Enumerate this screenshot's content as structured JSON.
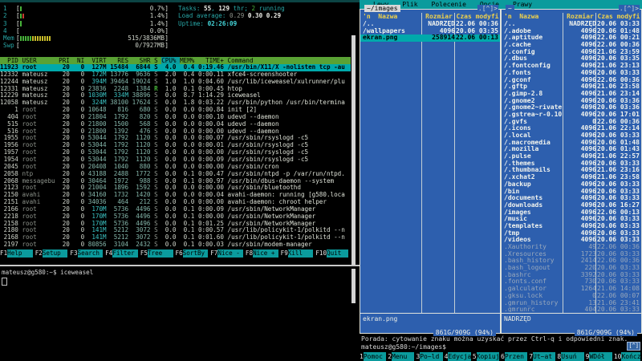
{
  "colors": {
    "mc_blue": "#2d5fae",
    "teal": "#0b9b9d",
    "selection_cyan": "#00a9ab",
    "htop_header_green": "#5aa234",
    "panel_yellow": "#f0d24b"
  },
  "htop": {
    "meters": [
      {
        "label": "1",
        "ticks": [
          "g"
        ],
        "value": "0.7%"
      },
      {
        "label": "2",
        "ticks": [
          "g",
          "r"
        ],
        "value": "1.4%"
      },
      {
        "label": "3",
        "ticks": [
          "g"
        ],
        "value": "1.4%"
      },
      {
        "label": "4",
        "ticks": [],
        "value": "0.0%"
      },
      {
        "label": "Mem",
        "ticks": [
          "g",
          "g",
          "g",
          "g",
          "g",
          "y",
          "y",
          "y",
          "y",
          "y",
          "y",
          "y",
          "y"
        ],
        "value": "515/3836MB"
      },
      {
        "label": "Swp",
        "ticks": [],
        "value": "0/7927MB"
      }
    ],
    "summary": [
      [
        {
          "t": "Tasks: ",
          "c": "lbl"
        },
        {
          "t": "55",
          "c": "wb"
        },
        {
          "t": ", ",
          "c": "lbl"
        },
        {
          "t": "129",
          "c": "wb"
        },
        {
          "t": " thr; ",
          "c": "lbl"
        },
        {
          "t": "2",
          "c": "grn"
        },
        {
          "t": " running",
          "c": "lbl"
        }
      ],
      [
        {
          "t": "Load average: ",
          "c": "lbl"
        },
        {
          "t": "0.29 ",
          "c": "dimt"
        },
        {
          "t": "0.30 ",
          "c": "wb"
        },
        {
          "t": "0.29",
          "c": "wb"
        }
      ],
      [
        {
          "t": "Uptime: ",
          "c": "lbl"
        },
        {
          "t": "02:26:09",
          "c": "cyb"
        }
      ]
    ],
    "columns": [
      "PID",
      "USER",
      "PRI",
      "NI",
      "VIRT",
      "RES",
      "SHR",
      "S",
      "CPU%",
      "MEM%",
      "TIME+",
      "Command"
    ],
    "sort_column": "CPU%",
    "processes": [
      {
        "f": [
          "11923",
          "root",
          "20",
          "0",
          "127M",
          "15484",
          "6844",
          "S",
          "4.0",
          "0.4",
          "0:19.46",
          "/usr/bin/X11/X -nolisten tcp -au"
        ],
        "sel": true
      },
      {
        "f": [
          "12332",
          "mateusz",
          "20",
          "0",
          "172M",
          "13776",
          "9636",
          "S",
          "2.0",
          "0.4",
          "0:00.11",
          "xfce4-screenshooter"
        ]
      },
      {
        "f": [
          "12244",
          "mateusz",
          "20",
          "0",
          "394M",
          "39464",
          "19024",
          "S",
          "1.0",
          "1.0",
          "0:04.60",
          "/usr/lib/iceweasel/xulrunner/plu"
        ]
      },
      {
        "f": [
          "12331",
          "mateusz",
          "20",
          "0",
          "23836",
          "2248",
          "1384",
          "R",
          "1.0",
          "0.1",
          "0:00.45",
          "htop"
        ]
      },
      {
        "f": [
          "12229",
          "mateusz",
          "20",
          "0",
          "1030M",
          "334M",
          "38896",
          "S",
          "0.0",
          "8.7",
          "1:14.29",
          "iceweasel"
        ]
      },
      {
        "f": [
          "12058",
          "mateusz",
          "20",
          "0",
          "324M",
          "38100",
          "17624",
          "S",
          "0.0",
          "1.8",
          "0:03.22",
          "/usr/bin/python /usr/bin/termina"
        ]
      },
      {
        "f": [
          "1",
          "root",
          "20",
          "0",
          "10648",
          "816",
          "680",
          "S",
          "0.0",
          "0.0",
          "0:00.84",
          "init [2]"
        ]
      },
      {
        "f": [
          "404",
          "root",
          "20",
          "0",
          "21804",
          "1792",
          "820",
          "S",
          "0.0",
          "0.0",
          "0:00.10",
          "udevd --daemon"
        ]
      },
      {
        "f": [
          "515",
          "root",
          "20",
          "0",
          "21800",
          "1500",
          "568",
          "S",
          "0.0",
          "0.0",
          "0:00.04",
          "udevd --daemon"
        ]
      },
      {
        "f": [
          "516",
          "root",
          "20",
          "0",
          "21800",
          "1392",
          "476",
          "S",
          "0.0",
          "0.0",
          "0:00.00",
          "udevd --daemon"
        ]
      },
      {
        "f": [
          "1955",
          "root",
          "20",
          "0",
          "53044",
          "1792",
          "1120",
          "S",
          "0.0",
          "0.0",
          "0:00.07",
          "/usr/sbin/rsyslogd -c5"
        ]
      },
      {
        "f": [
          "1956",
          "root",
          "20",
          "0",
          "53044",
          "1792",
          "1120",
          "S",
          "0.0",
          "0.0",
          "0:00.01",
          "/usr/sbin/rsyslogd -c5"
        ]
      },
      {
        "f": [
          "1957",
          "root",
          "20",
          "0",
          "53044",
          "1792",
          "1120",
          "S",
          "0.0",
          "0.0",
          "0:00.00",
          "/usr/sbin/rsyslogd -c5"
        ]
      },
      {
        "f": [
          "1954",
          "root",
          "20",
          "0",
          "53044",
          "1792",
          "1120",
          "S",
          "0.0",
          "0.0",
          "0:00.09",
          "/usr/sbin/rsyslogd -c5"
        ]
      },
      {
        "f": [
          "2045",
          "root",
          "20",
          "0",
          "20408",
          "1040",
          "880",
          "S",
          "0.0",
          "0.0",
          "0:00.00",
          "/usr/sbin/cron"
        ]
      },
      {
        "f": [
          "2058",
          "ntp",
          "20",
          "0",
          "43188",
          "2488",
          "1772",
          "S",
          "0.0",
          "0.1",
          "0:00.47",
          "/usr/sbin/ntpd -p /var/run/ntpd."
        ]
      },
      {
        "f": [
          "2068",
          "messagebu",
          "20",
          "0",
          "30464",
          "1972",
          "988",
          "S",
          "0.0",
          "0.1",
          "0:00.97",
          "/usr/bin/dbus-daemon --system"
        ]
      },
      {
        "f": [
          "2123",
          "root",
          "20",
          "0",
          "21004",
          "1896",
          "1592",
          "S",
          "0.0",
          "0.0",
          "0:00.00",
          "/usr/sbin/bluetoothd"
        ]
      },
      {
        "f": [
          "2150",
          "avahi",
          "20",
          "0",
          "34160",
          "1732",
          "1420",
          "S",
          "0.0",
          "0.0",
          "0:00.04",
          "avahi-daemon: running [g580.loca"
        ]
      },
      {
        "f": [
          "2151",
          "avahi",
          "20",
          "0",
          "34036",
          "464",
          "212",
          "S",
          "0.0",
          "0.0",
          "0:00.00",
          "avahi-daemon: chroot helper"
        ]
      },
      {
        "f": [
          "2166",
          "root",
          "20",
          "0",
          "170M",
          "5736",
          "4496",
          "S",
          "0.0",
          "0.1",
          "0:00.09",
          "/usr/sbin/NetworkManager"
        ]
      },
      {
        "f": [
          "2218",
          "root",
          "20",
          "0",
          "170M",
          "5736",
          "4496",
          "S",
          "0.0",
          "0.1",
          "0:00.00",
          "/usr/sbin/NetworkManager"
        ]
      },
      {
        "f": [
          "2158",
          "root",
          "20",
          "0",
          "170M",
          "5736",
          "4496",
          "S",
          "0.0",
          "0.1",
          "0:01.25",
          "/usr/sbin/NetworkManager"
        ]
      },
      {
        "f": [
          "2180",
          "root",
          "20",
          "0",
          "141M",
          "5212",
          "3072",
          "S",
          "0.0",
          "0.1",
          "0:00.57",
          "/usr/lib/policykit-1/polkitd --n"
        ]
      },
      {
        "f": [
          "2168",
          "root",
          "20",
          "0",
          "141M",
          "5212",
          "3072",
          "S",
          "0.0",
          "0.1",
          "0:01.60",
          "/usr/lib/policykit-1/polkitd --n"
        ]
      },
      {
        "f": [
          "2197",
          "root",
          "20",
          "0",
          "80856",
          "3104",
          "2432",
          "S",
          "0.0",
          "0.1",
          "0:00.03",
          "/usr/sbin/modem-manager"
        ]
      }
    ],
    "fkeys": [
      [
        "F1",
        "Help"
      ],
      [
        "F2",
        "Setup"
      ],
      [
        "F3",
        "Search"
      ],
      [
        "F4",
        "Filter"
      ],
      [
        "F5",
        "Tree"
      ],
      [
        "F6",
        "SortBy"
      ],
      [
        "F7",
        "Nice -"
      ],
      [
        "F8",
        "Nice +"
      ],
      [
        "F9",
        "Kill"
      ],
      [
        "F10",
        "Quit"
      ]
    ]
  },
  "shell": {
    "prompt": "mateusz@g580:~$ iceweasel"
  },
  "mc": {
    "menu": [
      "Lewy",
      "Plik",
      "Polecenie",
      "Opcje",
      "Prawy"
    ],
    "corner": ".[^]>",
    "header": {
      "sort": "'n",
      "name": "Nazwa",
      "size": "Rozmiar",
      "mtime": "Czas modyfi"
    },
    "left_panel": {
      "path": "~/images",
      "rows": [
        {
          "n": "/..",
          "s": "NADRZĘD",
          "d": "22.06 00:36",
          "t": "updir"
        },
        {
          "n": "/wallpapers",
          "s": "4096",
          "d": "20.06 03:35",
          "t": "dir"
        },
        {
          "n": "ekran.png",
          "s": "258914",
          "d": "22.06 00:13",
          "t": "sel"
        }
      ],
      "mini_status": "ekran.png",
      "free_space": "861G/909G (94%)"
    },
    "right_panel": {
      "path": "~",
      "rows": [
        {
          "n": "/..",
          "s": "NADRZĘD",
          "d": "20.06 03:33",
          "t": "updir"
        },
        {
          "n": "/.adobe",
          "s": "4096",
          "d": "20.06 01:48",
          "t": "dir"
        },
        {
          "n": "/.aptitude",
          "s": "4096",
          "d": "22.06 00:21",
          "t": "dir"
        },
        {
          "n": "/.cache",
          "s": "4096",
          "d": "22.06 00:36",
          "t": "dir"
        },
        {
          "n": "/.config",
          "s": "4096",
          "d": "21.06 23:59",
          "t": "dir"
        },
        {
          "n": "/.dbus",
          "s": "4096",
          "d": "20.06 03:35",
          "t": "dir"
        },
        {
          "n": "/.fontconfig",
          "s": "4096",
          "d": "21.06 23:13",
          "t": "dir"
        },
        {
          "n": "/.fonts",
          "s": "4096",
          "d": "20.06 03:33",
          "t": "dir"
        },
        {
          "n": "/.gconf",
          "s": "4096",
          "d": "22.06 00:36",
          "t": "dir"
        },
        {
          "n": "/.gftp",
          "s": "4096",
          "d": "21.06 23:58",
          "t": "dir"
        },
        {
          "n": "/.gimp-2.8",
          "s": "4096",
          "d": "21.06 23:14",
          "t": "dir"
        },
        {
          "n": "/.gnome2",
          "s": "4096",
          "d": "20.06 03:36",
          "t": "dir"
        },
        {
          "n": "/.gnome2~rivate",
          "s": "4096",
          "d": "20.06 03:36",
          "t": "dir"
        },
        {
          "n": "/.gstrea~r-0.10",
          "s": "4096",
          "d": "20.06 17:01",
          "t": "dir"
        },
        {
          "n": "/.gvfs",
          "s": "0",
          "d": "22.06 00:36",
          "t": "dir"
        },
        {
          "n": "/.icons",
          "s": "4096",
          "d": "21.06 22:14",
          "t": "dir"
        },
        {
          "n": "/.local",
          "s": "4096",
          "d": "20.06 03:33",
          "t": "dir"
        },
        {
          "n": "/.macromedia",
          "s": "4096",
          "d": "20.06 01:48",
          "t": "dir"
        },
        {
          "n": "/.mozilla",
          "s": "4096",
          "d": "20.06 01:43",
          "t": "dir"
        },
        {
          "n": "/.pulse",
          "s": "4096",
          "d": "21.06 22:57",
          "t": "dir"
        },
        {
          "n": "/.themes",
          "s": "4096",
          "d": "20.06 03:33",
          "t": "dir"
        },
        {
          "n": "/.thumbnails",
          "s": "4096",
          "d": "21.06 23:16",
          "t": "dir"
        },
        {
          "n": "/.xchat2",
          "s": "4096",
          "d": "21.06 23:58",
          "t": "dir"
        },
        {
          "n": "/backup",
          "s": "4096",
          "d": "20.06 03:33",
          "t": "dir"
        },
        {
          "n": "/bin",
          "s": "4096",
          "d": "20.06 03:33",
          "t": "dir"
        },
        {
          "n": "/documents",
          "s": "4096",
          "d": "20.06 03:33",
          "t": "dir"
        },
        {
          "n": "/downloads",
          "s": "4096",
          "d": "20.06 16:27",
          "t": "dir"
        },
        {
          "n": "/images",
          "s": "4096",
          "d": "22.06 00:13",
          "t": "dir"
        },
        {
          "n": "/music",
          "s": "4096",
          "d": "20.06 03:33",
          "t": "dir"
        },
        {
          "n": "/templates",
          "s": "4096",
          "d": "20.06 03:33",
          "t": "dir"
        },
        {
          "n": "/tmp",
          "s": "4096",
          "d": "20.06 03:33",
          "t": "dir"
        },
        {
          "n": "/videos",
          "s": "4096",
          "d": "20.06 03:33",
          "t": "dir"
        },
        {
          "n": ".Xauthority",
          "s": "49",
          "d": "22.06 00:36",
          "t": "file"
        },
        {
          "n": ".Xresources",
          "s": "1723",
          "d": "20.06 03:33",
          "t": "file"
        },
        {
          "n": ".bash_history",
          "s": "2414",
          "d": "22.06 00:36",
          "t": "file"
        },
        {
          "n": ".bash_logout",
          "s": "220",
          "d": "20.06 03:33",
          "t": "file"
        },
        {
          "n": ".bashrc",
          "s": "3392",
          "d": "20.06 03:33",
          "t": "file"
        },
        {
          "n": ".fonts.conf",
          "s": "730",
          "d": "20.06 03:33",
          "t": "file"
        },
        {
          "n": ".galculator",
          "s": "1264",
          "d": "21.06 14:08",
          "t": "file"
        },
        {
          "n": ".gksu.lock",
          "s": "0",
          "d": "22.06 00:07",
          "t": "file"
        },
        {
          "n": ".gmrun_history",
          "s": "13",
          "d": "21.06 23:41",
          "t": "file"
        },
        {
          "n": ".gmrunrc",
          "s": "404",
          "d": "20.06 03:33",
          "t": "file"
        }
      ],
      "mini_status": "NADRZĘD",
      "free_space": "861G/909G (94%)"
    },
    "hint": "Porada: cytowanie znaku można uzyskać przez Ctrl-q i odpowiedni znak.",
    "prompt": "mateusz@g580:~/images$",
    "scroll_badge": "[^]",
    "fkeys": [
      [
        "1",
        "Pomoc"
      ],
      [
        "2",
        "Menu"
      ],
      [
        "3",
        "Po~ld"
      ],
      [
        "4",
        "Edycja"
      ],
      [
        "5",
        "Kopiuj"
      ],
      [
        "6",
        "Przen"
      ],
      [
        "7",
        "Ut~at"
      ],
      [
        "8",
        "Usuń"
      ],
      [
        "9",
        "WDół"
      ],
      [
        "10",
        "Kończ"
      ]
    ]
  }
}
